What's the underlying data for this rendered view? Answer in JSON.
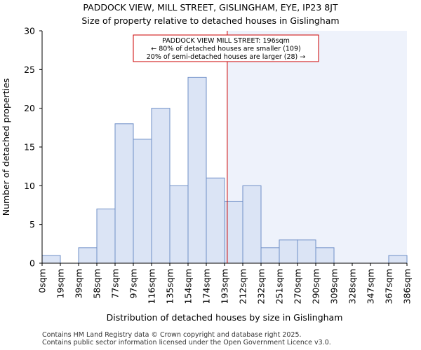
{
  "chart_data": {
    "type": "bar",
    "title": "PADDOCK VIEW, MILL STREET, GISLINGHAM, EYE, IP23 8JT",
    "subtitle": "Size of property relative to detached houses in Gislingham",
    "xlabel": "Distribution of detached houses by size in Gislingham",
    "ylabel": "Number of detached properties",
    "ylim": [
      0,
      30
    ],
    "yticks": [
      "0",
      "5",
      "10",
      "15",
      "20",
      "25",
      "30"
    ],
    "bin_edges": [
      "0sqm",
      "19sqm",
      "39sqm",
      "58sqm",
      "77sqm",
      "97sqm",
      "116sqm",
      "135sqm",
      "154sqm",
      "174sqm",
      "193sqm",
      "212sqm",
      "232sqm",
      "251sqm",
      "270sqm",
      "290sqm",
      "309sqm",
      "328sqm",
      "347sqm",
      "367sqm",
      "386sqm"
    ],
    "values": [
      1,
      0,
      2,
      7,
      18,
      16,
      20,
      10,
      24,
      11,
      8,
      10,
      2,
      3,
      3,
      2,
      0,
      0,
      0,
      1
    ],
    "marker_bin_position": 10.15,
    "annotation": [
      "PADDOCK VIEW MILL STREET: 196sqm",
      "← 80% of detached houses are smaller (109)",
      "20% of semi-detached houses are larger (28) →"
    ],
    "colors": {
      "bar_fill": "#dbe4f5",
      "bar_stroke": "#6f8fc7",
      "marker": "#cc0000",
      "highlight_region": "#eef2fb"
    }
  },
  "footer": {
    "line1": "Contains HM Land Registry data © Crown copyright and database right 2025.",
    "line2": "Contains public sector information licensed under the Open Government Licence v3.0."
  }
}
